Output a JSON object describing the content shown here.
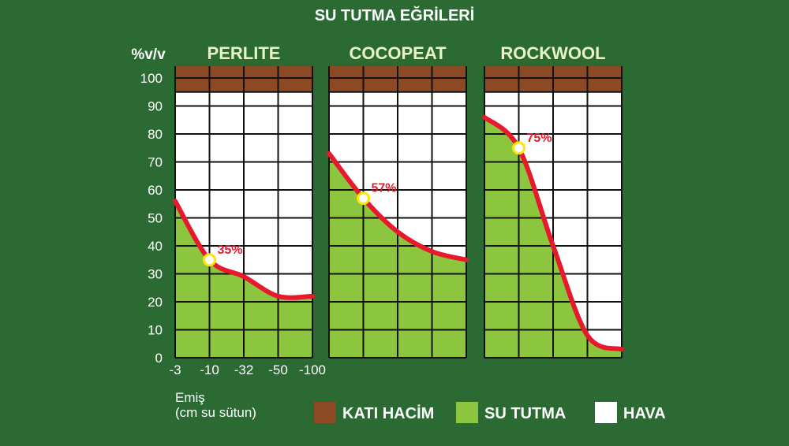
{
  "title": "SU TUTMA EĞRİLERİ",
  "y_unit": "%v/v",
  "y_ticks": [
    "100",
    "90",
    "80",
    "70",
    "60",
    "50",
    "40",
    "30",
    "20",
    "10",
    "0"
  ],
  "x_ticks": [
    "-3",
    "-10",
    "-32",
    "-50",
    "-100"
  ],
  "x_title_line1": "Emiş",
  "x_title_line2": "(cm su sütun)",
  "legend": [
    {
      "label": "KATI HACİM",
      "color": "#8b4a24"
    },
    {
      "label": "SU TUTMA",
      "color": "#8cc63f"
    },
    {
      "label": "HAVA",
      "color": "#ffffff"
    }
  ],
  "colors": {
    "background": "#2b6b33",
    "solid": "#8b4a24",
    "water": "#8cc63f",
    "air": "#ffffff",
    "curve": "#e8192c",
    "marker": "#ffe600"
  },
  "chart_data": [
    {
      "type": "area",
      "title": "PERLITE",
      "xlabel": "Emiş (cm su sütun)",
      "ylabel": "%v/v",
      "x": [
        -3,
        -10,
        -32,
        -50,
        -100
      ],
      "ylim": [
        0,
        100
      ],
      "solid_range": [
        95,
        100
      ],
      "series": [
        {
          "name": "SU TUTMA",
          "values": [
            56,
            35,
            29,
            22,
            22
          ]
        }
      ],
      "point": {
        "x": -10,
        "y": 35,
        "label": "35%"
      }
    },
    {
      "type": "area",
      "title": "COCOPEAT",
      "xlabel": "Emiş (cm su sütun)",
      "ylabel": "%v/v",
      "x": [
        -3,
        -10,
        -32,
        -50,
        -100
      ],
      "ylim": [
        0,
        100
      ],
      "solid_range": [
        95,
        100
      ],
      "series": [
        {
          "name": "SU TUTMA",
          "values": [
            73,
            57,
            45,
            38,
            35
          ]
        }
      ],
      "point": {
        "x": -10,
        "y": 57,
        "label": "57%"
      }
    },
    {
      "type": "area",
      "title": "ROCKWOOL",
      "xlabel": "Emiş (cm su sütun)",
      "ylabel": "%v/v",
      "x": [
        -3,
        -10,
        -32,
        -50,
        -100
      ],
      "ylim": [
        0,
        100
      ],
      "solid_range": [
        95,
        100
      ],
      "series": [
        {
          "name": "SU TUTMA",
          "values": [
            86,
            75,
            40,
            8,
            3
          ]
        }
      ],
      "point": {
        "x": -10,
        "y": 75,
        "label": "75%"
      }
    }
  ]
}
